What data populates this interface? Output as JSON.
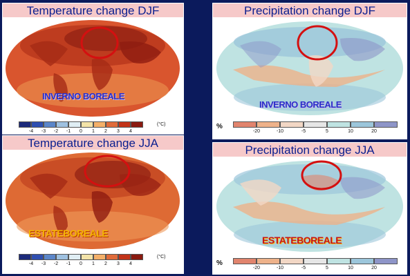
{
  "panels": {
    "temp_djf": {
      "title": "Temperature change DJF",
      "region": "INVERNO BOREALE"
    },
    "temp_jja": {
      "title": "Temperature change JJA",
      "region": "ESTATEBOREALE"
    },
    "precip_djf": {
      "title": "Precipitation change DJF",
      "region": "INVERNO BOREALE"
    },
    "precip_jja": {
      "title": "Precipitation change JJA",
      "region": "ESTATEBOREALE"
    }
  },
  "temperature_scale": {
    "unit": "(°C)",
    "ticks": [
      "-4",
      "-3",
      "-2",
      "-1",
      "0",
      "1",
      "2",
      "3",
      "4"
    ],
    "colors": [
      "#1c2a7a",
      "#2f4fb0",
      "#5b86c9",
      "#9fc1e0",
      "#e0eef4",
      "#f3e3a8",
      "#f4b069",
      "#e06b3a",
      "#c23318",
      "#8a1a10"
    ]
  },
  "precipitation_scale": {
    "unit": "%",
    "ticks": [
      "-20",
      "-10",
      "-5",
      "5",
      "10",
      "20"
    ],
    "colors": [
      "#e1846d",
      "#eeb28a",
      "#f2d7c5",
      "#e6e6e6",
      "#bfe3e2",
      "#9cc6db",
      "#8e95c8"
    ]
  },
  "colors": {
    "background": "#0b1a5c",
    "title_bg": "#f6c9c9",
    "title_text": "#0b1f8f",
    "highlight_circle": "#d41010"
  }
}
